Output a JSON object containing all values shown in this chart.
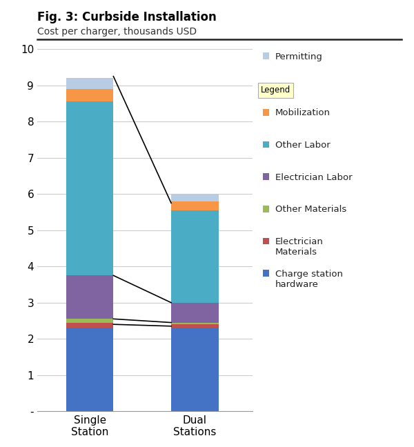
{
  "title_bold": "Fig. 3: Curbside Installation",
  "subtitle": "Cost per charger, thousands USD",
  "categories": [
    "Single\nStation",
    "Dual\nStations"
  ],
  "segments": [
    {
      "label": "Charge station\nhardware",
      "color": "#4472C4",
      "values": [
        2.3,
        2.3
      ]
    },
    {
      "label": "Electrician\nMaterials",
      "color": "#C0504D",
      "values": [
        0.15,
        0.1
      ]
    },
    {
      "label": "Other Materials",
      "color": "#9BBB59",
      "values": [
        0.1,
        0.05
      ]
    },
    {
      "label": "Electrician Labor",
      "color": "#8064A2",
      "values": [
        1.2,
        0.55
      ]
    },
    {
      "label": "Other Labor",
      "color": "#4BACC6",
      "values": [
        4.8,
        2.55
      ]
    },
    {
      "label": "Mobilization",
      "color": "#F79646",
      "values": [
        0.35,
        0.25
      ]
    },
    {
      "label": "Permitting",
      "color": "#B8CCE4",
      "values": [
        0.3,
        0.2
      ]
    }
  ],
  "ylim": [
    0,
    10
  ],
  "yticks": [
    0,
    1,
    2,
    3,
    4,
    5,
    6,
    7,
    8,
    9,
    10
  ],
  "ytick_labels": [
    "-",
    "1",
    "2",
    "3",
    "4",
    "5",
    "6",
    "7",
    "8",
    "9",
    "10"
  ],
  "background_color": "#FFFFFF",
  "plot_bg_color": "#FFFFFF",
  "grid_color": "#CCCCCC",
  "line_color": "#000000",
  "line_levels_single": [
    9.25,
    3.75,
    2.55,
    2.4
  ],
  "line_levels_dual": [
    5.75,
    3.0,
    2.45,
    2.35
  ],
  "bar_width": 0.45,
  "legend_title_bg": "#FFFFCC",
  "legend_title_edgecolor": "#AAAAAA"
}
